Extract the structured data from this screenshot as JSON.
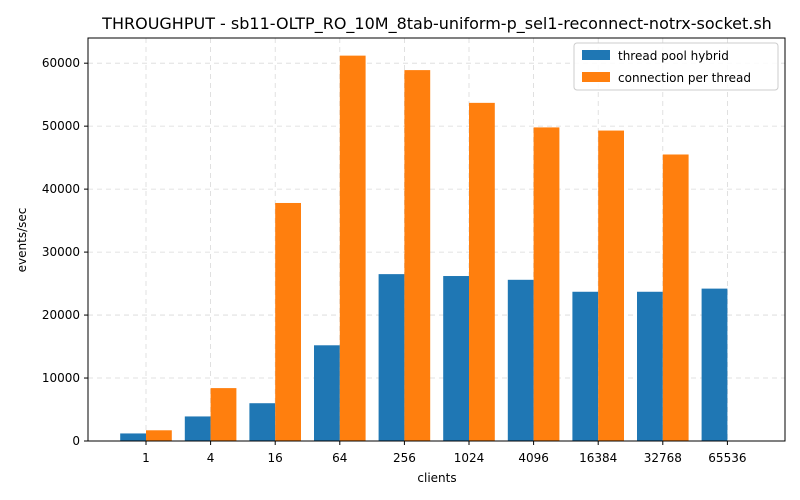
{
  "chart_data": {
    "type": "bar",
    "title": "THROUGHPUT - sb11-OLTP_RO_10M_8tab-uniform-p_sel1-reconnect-notrx-socket.sh",
    "xlabel": "clients",
    "ylabel": "events/sec",
    "categories": [
      "1",
      "4",
      "16",
      "64",
      "256",
      "1024",
      "4096",
      "16384",
      "32768",
      "65536"
    ],
    "ylim": [
      0,
      64000
    ],
    "yticks": [
      0,
      10000,
      20000,
      30000,
      40000,
      50000,
      60000
    ],
    "grid": true,
    "legend_position": "top-right",
    "series": [
      {
        "name": "thread pool hybrid",
        "color": "#1f77b4",
        "values": [
          1200,
          3900,
          6000,
          15200,
          26500,
          26200,
          25600,
          23700,
          23700,
          24200
        ]
      },
      {
        "name": "connection per thread",
        "color": "#ff7f0e",
        "values": [
          1700,
          8400,
          37800,
          61200,
          58900,
          53700,
          49800,
          49300,
          45500,
          0
        ]
      }
    ]
  }
}
